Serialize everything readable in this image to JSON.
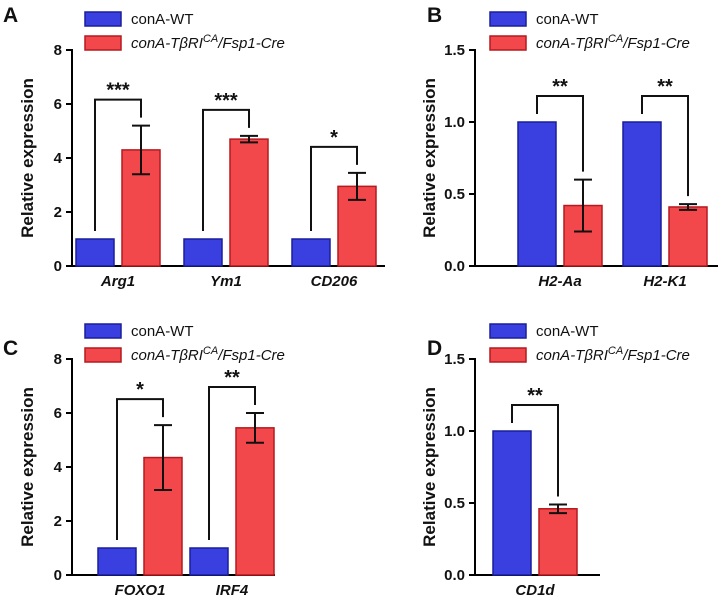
{
  "legend": {
    "wt_label": "conA-WT",
    "ko_prefix": "conA-TβRI",
    "ko_sup": "CA",
    "ko_suffix": "/Fsp1-Cre",
    "colors": {
      "wt": "#3a3fe0",
      "ko": "#f2474b"
    }
  },
  "chart_data": [
    {
      "panel": "A",
      "type": "bar",
      "ylabel": "Relative expression",
      "ylim": [
        0,
        8
      ],
      "yticks": [
        0,
        2,
        4,
        6,
        8
      ],
      "ytick_labels": [
        "0",
        "2",
        "4",
        "6",
        "8"
      ],
      "categories": [
        "Arg1",
        "Ym1",
        "CD206"
      ],
      "series": [
        {
          "name": "conA-WT",
          "values": [
            1,
            1,
            1
          ],
          "errors": [
            0,
            0,
            0
          ]
        },
        {
          "name": "conA-TβRICA/Fsp1-Cre",
          "values": [
            4.3,
            4.7,
            2.95
          ],
          "errors": [
            0.9,
            0.12,
            0.5
          ]
        }
      ],
      "significance": [
        "***",
        "***",
        "*"
      ]
    },
    {
      "panel": "B",
      "type": "bar",
      "ylabel": "Relative expression",
      "ylim": [
        0,
        1.5
      ],
      "yticks": [
        0,
        0.5,
        1,
        1.5
      ],
      "ytick_labels": [
        "0.0",
        "0.5",
        "1.0",
        "1.5"
      ],
      "categories": [
        "H2-Aa",
        "H2-K1"
      ],
      "series": [
        {
          "name": "conA-WT",
          "values": [
            1,
            1
          ],
          "errors": [
            0,
            0
          ]
        },
        {
          "name": "conA-TβRICA/Fsp1-Cre",
          "values": [
            0.42,
            0.41
          ],
          "errors": [
            0.18,
            0.02
          ]
        }
      ],
      "significance": [
        "**",
        "**"
      ]
    },
    {
      "panel": "C",
      "type": "bar",
      "ylabel": "Relative expression",
      "ylim": [
        0,
        8
      ],
      "yticks": [
        0,
        2,
        4,
        6,
        8
      ],
      "ytick_labels": [
        "0",
        "2",
        "4",
        "6",
        "8"
      ],
      "categories": [
        "FOXO1",
        "IRF4"
      ],
      "series": [
        {
          "name": "conA-WT",
          "values": [
            1,
            1
          ],
          "errors": [
            0,
            0
          ]
        },
        {
          "name": "conA-TβRICA/Fsp1-Cre",
          "values": [
            4.35,
            5.45
          ],
          "errors": [
            1.2,
            0.55
          ]
        }
      ],
      "significance": [
        "*",
        "**"
      ]
    },
    {
      "panel": "D",
      "type": "bar",
      "ylabel": "Relative expression",
      "ylim": [
        0,
        1.5
      ],
      "yticks": [
        0,
        0.5,
        1,
        1.5
      ],
      "ytick_labels": [
        "0.0",
        "0.5",
        "1.0",
        "1.5"
      ],
      "categories": [
        "CD1d"
      ],
      "series": [
        {
          "name": "conA-WT",
          "values": [
            1
          ],
          "errors": [
            0
          ]
        },
        {
          "name": "conA-TβRICA/Fsp1-Cre",
          "values": [
            0.46
          ],
          "errors": [
            0.03
          ]
        }
      ],
      "significance": [
        "**"
      ]
    }
  ]
}
